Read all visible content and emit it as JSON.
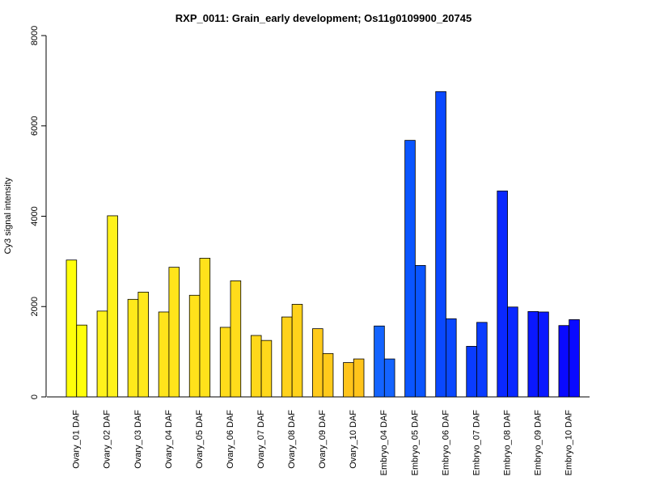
{
  "chart_data": {
    "type": "bar",
    "title": "RXP_0011: Grain_early development; Os11g0109900_20745",
    "xlabel": "",
    "ylabel": "Cy3 signal intensity",
    "ylim": [
      0,
      8000
    ],
    "yticks": [
      0,
      2000,
      4000,
      6000,
      8000
    ],
    "grid": false,
    "legend": "none",
    "categories": [
      "Ovary_01 DAF",
      "Ovary_02 DAF",
      "Ovary_03 DAF",
      "Ovary_04 DAF",
      "Ovary_05 DAF",
      "Ovary_06 DAF",
      "Ovary_07 DAF",
      "Ovary_08 DAF",
      "Ovary_09 DAF",
      "Ovary_10 DAF",
      "Embryo_04 DAF",
      "Embryo_05 DAF",
      "Embryo_06 DAF",
      "Embryo_07 DAF",
      "Embryo_08 DAF",
      "Embryo_09 DAF",
      "Embryo_10 DAF"
    ],
    "series": [
      {
        "values": [
          3030,
          1900,
          2160,
          1880,
          2250,
          1540,
          1360,
          1770,
          1510,
          760,
          1570,
          5680,
          6760,
          1120,
          4560,
          1890,
          1580
        ]
      },
      {
        "values": [
          1590,
          4010,
          2320,
          2870,
          3070,
          2570,
          1250,
          2050,
          960,
          840,
          840,
          2910,
          1730,
          1650,
          1990,
          1880,
          1710
        ]
      }
    ],
    "colors": [
      "#ffff0a",
      "#fff21b",
      "#ffe91b",
      "#ffe41b",
      "#ffe21b",
      "#ffdc1b",
      "#ffd81b",
      "#ffd21b",
      "#ffca1b",
      "#ffc41b",
      "#1464ff",
      "#0a55ff",
      "#0a48ff",
      "#0a3cff",
      "#0a28ff",
      "#0a18ff",
      "#0a0aff"
    ]
  }
}
